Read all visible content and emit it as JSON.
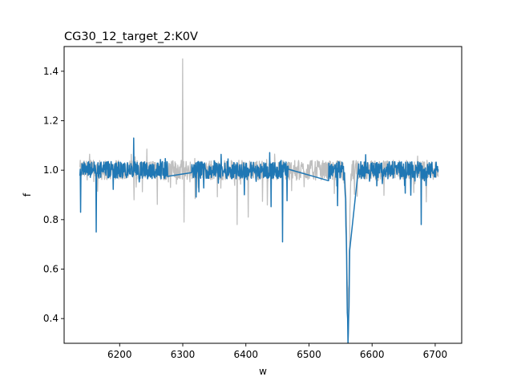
{
  "chart_data": {
    "type": "line",
    "title": "CG30_12_target_2:K0V",
    "xlabel": "w",
    "ylabel": "f",
    "xlim": [
      6112,
      6742
    ],
    "ylim": [
      0.3,
      1.5
    ],
    "xticks": [
      6200,
      6300,
      6400,
      6500,
      6600,
      6700
    ],
    "yticks": [
      0.4,
      0.6,
      0.8,
      1.0,
      1.2,
      1.4
    ],
    "xtick_labels": [
      "6200",
      "6300",
      "6400",
      "6500",
      "6600",
      "6700"
    ],
    "ytick_labels": [
      "0.4",
      "0.6",
      "0.8",
      "1.0",
      "1.2",
      "1.4"
    ],
    "grid": false,
    "series": [
      {
        "color": "#bfbfbf",
        "description": "full noisy spectrum (grey), visible mainly in masked gaps",
        "x_range": [
          6137,
          6705
        ],
        "baseline": 1.0,
        "noise": 0.04,
        "features": [
          {
            "x": 6300,
            "y": 1.45
          },
          {
            "x": 6302,
            "y": 0.79
          },
          {
            "x": 6386,
            "y": 0.78
          },
          {
            "x": 6404,
            "y": 0.81
          },
          {
            "x": 6562,
            "y": 0.3
          }
        ]
      },
      {
        "color": "#1f77b4",
        "description": "masked spectrum (blue), straight segments across gaps",
        "segments": [
          [
            6137,
            6277
          ],
          [
            6314,
            6468
          ],
          [
            6531,
            6705
          ]
        ],
        "gap_bridges": [
          {
            "x": [
              6277,
              6314
            ],
            "y": [
              1.0,
              0.98
            ]
          },
          {
            "x": [
              6468,
              6531
            ],
            "y": [
              0.96,
              1.01
            ]
          },
          {
            "x": [
              6565,
              6578
            ],
            "y": [
              0.86,
              1.0
            ]
          }
        ],
        "baseline": 1.0,
        "noise": 0.035,
        "features": [
          {
            "x": 6138,
            "y": 0.83
          },
          {
            "x": 6163,
            "y": 0.75
          },
          {
            "x": 6222,
            "y": 1.13
          },
          {
            "x": 6458,
            "y": 0.71
          },
          {
            "x": 6562,
            "y": 0.3
          },
          {
            "x": 6678,
            "y": 0.78
          }
        ]
      }
    ]
  }
}
